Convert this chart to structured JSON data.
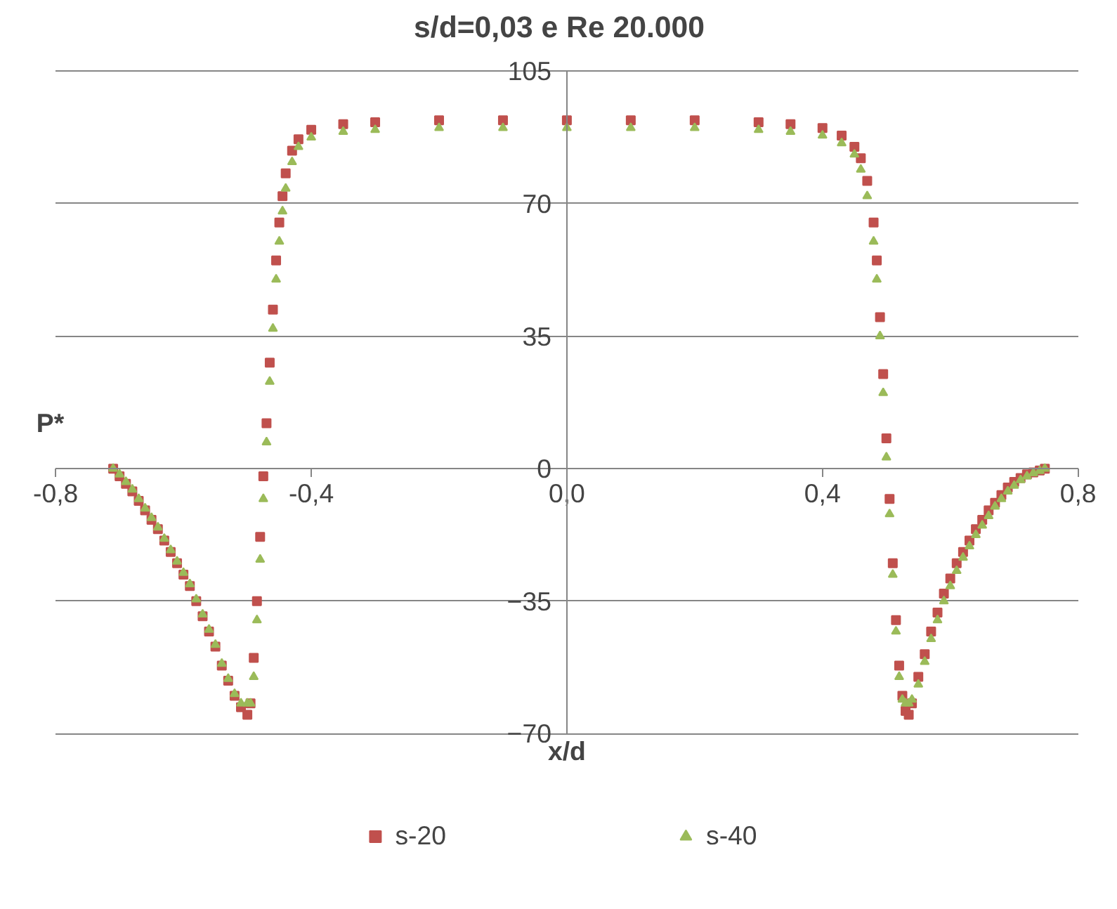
{
  "chart_data": {
    "type": "scatter",
    "title": "s/d=0,03 e Re 20.000",
    "xlabel": "x/d",
    "ylabel": "P*",
    "xlim": [
      -0.8,
      0.8
    ],
    "ylim": [
      -70,
      105
    ],
    "xticks": [
      {
        "value": -0.8,
        "label": "-0,8"
      },
      {
        "value": -0.4,
        "label": "-0,4"
      },
      {
        "value": 0,
        "label": "0,0"
      },
      {
        "value": 0.4,
        "label": "0,4"
      },
      {
        "value": 0.8,
        "label": "0,8"
      }
    ],
    "yticks": [
      -70,
      -35,
      0,
      35,
      70,
      105
    ],
    "grid": "y",
    "legend": "bottom",
    "series": [
      {
        "name": "s-20",
        "color": "#c0504d",
        "marker": "square",
        "x": [
          -0.71,
          -0.7,
          -0.69,
          -0.68,
          -0.67,
          -0.66,
          -0.65,
          -0.64,
          -0.63,
          -0.62,
          -0.61,
          -0.6,
          -0.59,
          -0.58,
          -0.57,
          -0.56,
          -0.55,
          -0.54,
          -0.53,
          -0.52,
          -0.51,
          -0.5,
          -0.495,
          -0.49,
          -0.485,
          -0.48,
          -0.475,
          -0.47,
          -0.465,
          -0.46,
          -0.455,
          -0.45,
          -0.445,
          -0.44,
          -0.43,
          -0.42,
          -0.4,
          -0.35,
          -0.3,
          -0.2,
          -0.1,
          0,
          0.1,
          0.2,
          0.3,
          0.35,
          0.4,
          0.43,
          0.45,
          0.46,
          0.47,
          0.48,
          0.485,
          0.49,
          0.495,
          0.5,
          0.505,
          0.51,
          0.515,
          0.52,
          0.525,
          0.53,
          0.535,
          0.54,
          0.55,
          0.56,
          0.57,
          0.58,
          0.59,
          0.6,
          0.61,
          0.62,
          0.63,
          0.64,
          0.65,
          0.66,
          0.67,
          0.68,
          0.69,
          0.7,
          0.71,
          0.72,
          0.73,
          0.74,
          0.748
        ],
        "values": [
          0,
          -2,
          -4,
          -6,
          -8.5,
          -11,
          -13.5,
          -16,
          -19,
          -22,
          -25,
          -28,
          -31,
          -35,
          -39,
          -43,
          -47,
          -52,
          -56,
          -60,
          -63,
          -65,
          -62,
          -50,
          -35,
          -18,
          -2,
          12,
          28,
          42,
          55,
          65,
          72,
          78,
          84,
          87,
          89.5,
          91,
          91.5,
          92,
          92,
          92,
          92,
          92,
          91.5,
          91,
          90,
          88,
          85,
          82,
          76,
          65,
          55,
          40,
          25,
          8,
          -8,
          -25,
          -40,
          -52,
          -60,
          -64,
          -65,
          -62,
          -55,
          -49,
          -43,
          -38,
          -33,
          -29,
          -25,
          -22,
          -19,
          -16,
          -13.5,
          -11,
          -9,
          -7,
          -5,
          -3.5,
          -2.5,
          -1.5,
          -1,
          -0.5,
          0
        ]
      },
      {
        "name": "s-40",
        "color": "#9bbb59",
        "marker": "triangle",
        "x": [
          -0.71,
          -0.7,
          -0.69,
          -0.68,
          -0.67,
          -0.66,
          -0.65,
          -0.64,
          -0.63,
          -0.62,
          -0.61,
          -0.6,
          -0.59,
          -0.58,
          -0.57,
          -0.56,
          -0.55,
          -0.54,
          -0.53,
          -0.52,
          -0.51,
          -0.5,
          -0.495,
          -0.49,
          -0.485,
          -0.48,
          -0.475,
          -0.47,
          -0.465,
          -0.46,
          -0.455,
          -0.45,
          -0.445,
          -0.44,
          -0.43,
          -0.42,
          -0.4,
          -0.35,
          -0.3,
          -0.2,
          -0.1,
          0,
          0.1,
          0.2,
          0.3,
          0.35,
          0.4,
          0.43,
          0.45,
          0.46,
          0.47,
          0.48,
          0.485,
          0.49,
          0.495,
          0.5,
          0.505,
          0.51,
          0.515,
          0.52,
          0.525,
          0.53,
          0.535,
          0.54,
          0.55,
          0.56,
          0.57,
          0.58,
          0.59,
          0.6,
          0.61,
          0.62,
          0.63,
          0.64,
          0.65,
          0.66,
          0.67,
          0.68,
          0.69,
          0.7,
          0.71,
          0.72,
          0.73,
          0.74,
          0.748
        ],
        "values": [
          0,
          -1.5,
          -3.5,
          -5.5,
          -8,
          -10.5,
          -13,
          -15.5,
          -18.5,
          -21.5,
          -24.5,
          -27.5,
          -30.5,
          -34.5,
          -38.5,
          -42.5,
          -46.5,
          -51.5,
          -55.5,
          -59.5,
          -62,
          -62,
          -62,
          -55,
          -40,
          -24,
          -8,
          7,
          23,
          37,
          50,
          60,
          68,
          74,
          81,
          85,
          87.5,
          89,
          89.5,
          90,
          90,
          90,
          90,
          90,
          89.5,
          89,
          88,
          86,
          83,
          79,
          72,
          60,
          50,
          35,
          20,
          3,
          -12,
          -28,
          -43,
          -55,
          -61,
          -62,
          -62,
          -61,
          -57,
          -51,
          -45,
          -40,
          -35,
          -31,
          -27,
          -23.5,
          -20.5,
          -17.5,
          -15,
          -12.5,
          -10,
          -8,
          -6,
          -4.5,
          -3,
          -2,
          -1.2,
          -0.6,
          0
        ]
      }
    ]
  }
}
